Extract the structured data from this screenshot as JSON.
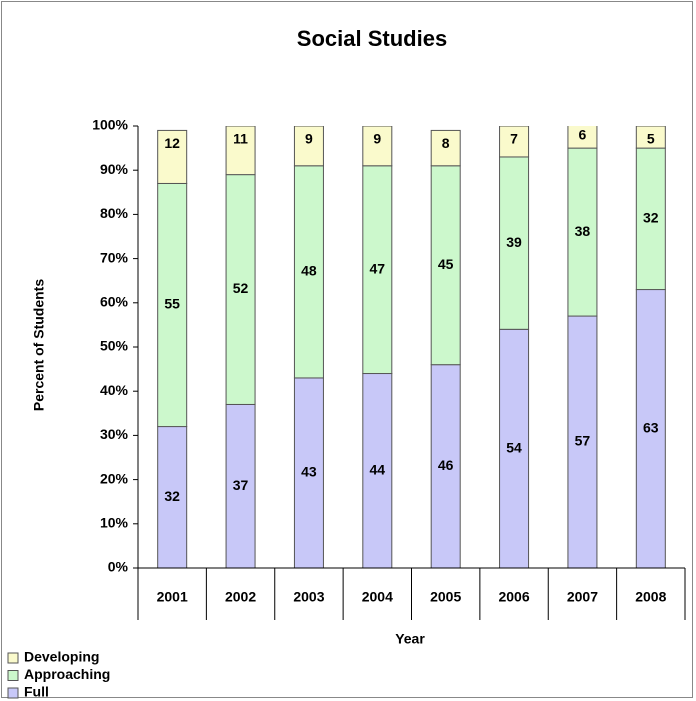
{
  "chart_data": {
    "type": "stacked_bar",
    "title": "Social Studies",
    "xlabel": "Year",
    "ylabel": "Percent of Students",
    "categories": [
      "2001",
      "2002",
      "2003",
      "2004",
      "2005",
      "2006",
      "2007",
      "2008"
    ],
    "series": [
      {
        "name": "Full",
        "color": "#c8c8f8",
        "values": [
          32,
          37,
          43,
          44,
          46,
          54,
          57,
          63
        ]
      },
      {
        "name": "Approaching",
        "color": "#ccf8cc",
        "values": [
          55,
          52,
          48,
          47,
          45,
          39,
          38,
          32
        ]
      },
      {
        "name": "Developing",
        "color": "#fafacc",
        "values": [
          12,
          11,
          9,
          9,
          8,
          7,
          6,
          5
        ]
      }
    ],
    "ylim": [
      0,
      100
    ],
    "yticks": [
      {
        "value": 0,
        "label": "0%"
      },
      {
        "value": 10,
        "label": "10%"
      },
      {
        "value": 20,
        "label": "20%"
      },
      {
        "value": 30,
        "label": "30%"
      },
      {
        "value": 40,
        "label": "40%"
      },
      {
        "value": 50,
        "label": "50%"
      },
      {
        "value": 60,
        "label": "60%"
      },
      {
        "value": 70,
        "label": "70%"
      },
      {
        "value": 80,
        "label": "80%"
      },
      {
        "value": 90,
        "label": "90%"
      },
      {
        "value": 100,
        "label": "100%"
      }
    ],
    "legend": "bottom-left"
  }
}
